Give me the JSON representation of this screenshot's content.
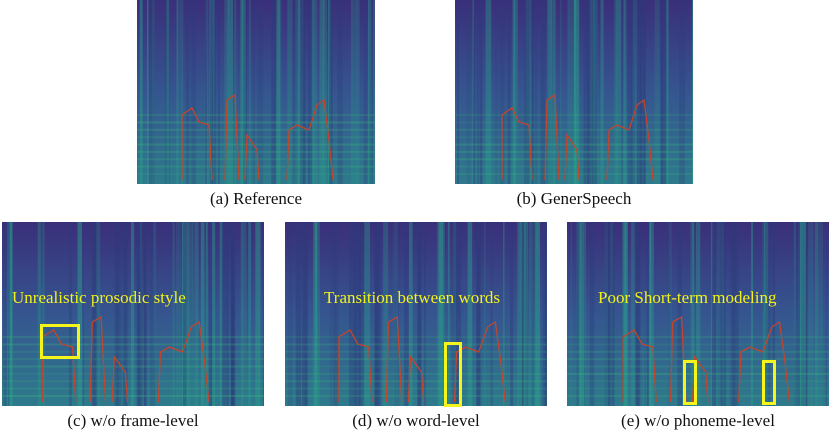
{
  "figure": {
    "panels": [
      {
        "id": "a",
        "caption": "(a) Reference",
        "overlay": ""
      },
      {
        "id": "b",
        "caption": "(b) GenerSpeech",
        "overlay": ""
      },
      {
        "id": "c",
        "caption": "(c) w/o frame-level",
        "overlay": "Unrealistic prosodic style"
      },
      {
        "id": "d",
        "caption": "(d) w/o word-level",
        "overlay": "Transition between words"
      },
      {
        "id": "e",
        "caption": "(e) w/o phoneme-level",
        "overlay": "Poor Short-term modeling"
      }
    ],
    "colors": {
      "spec_background": "#3b4f8f",
      "spec_energy": "#3fc07a",
      "contour": "#c2452d",
      "highlight": "#f5f51b"
    }
  }
}
